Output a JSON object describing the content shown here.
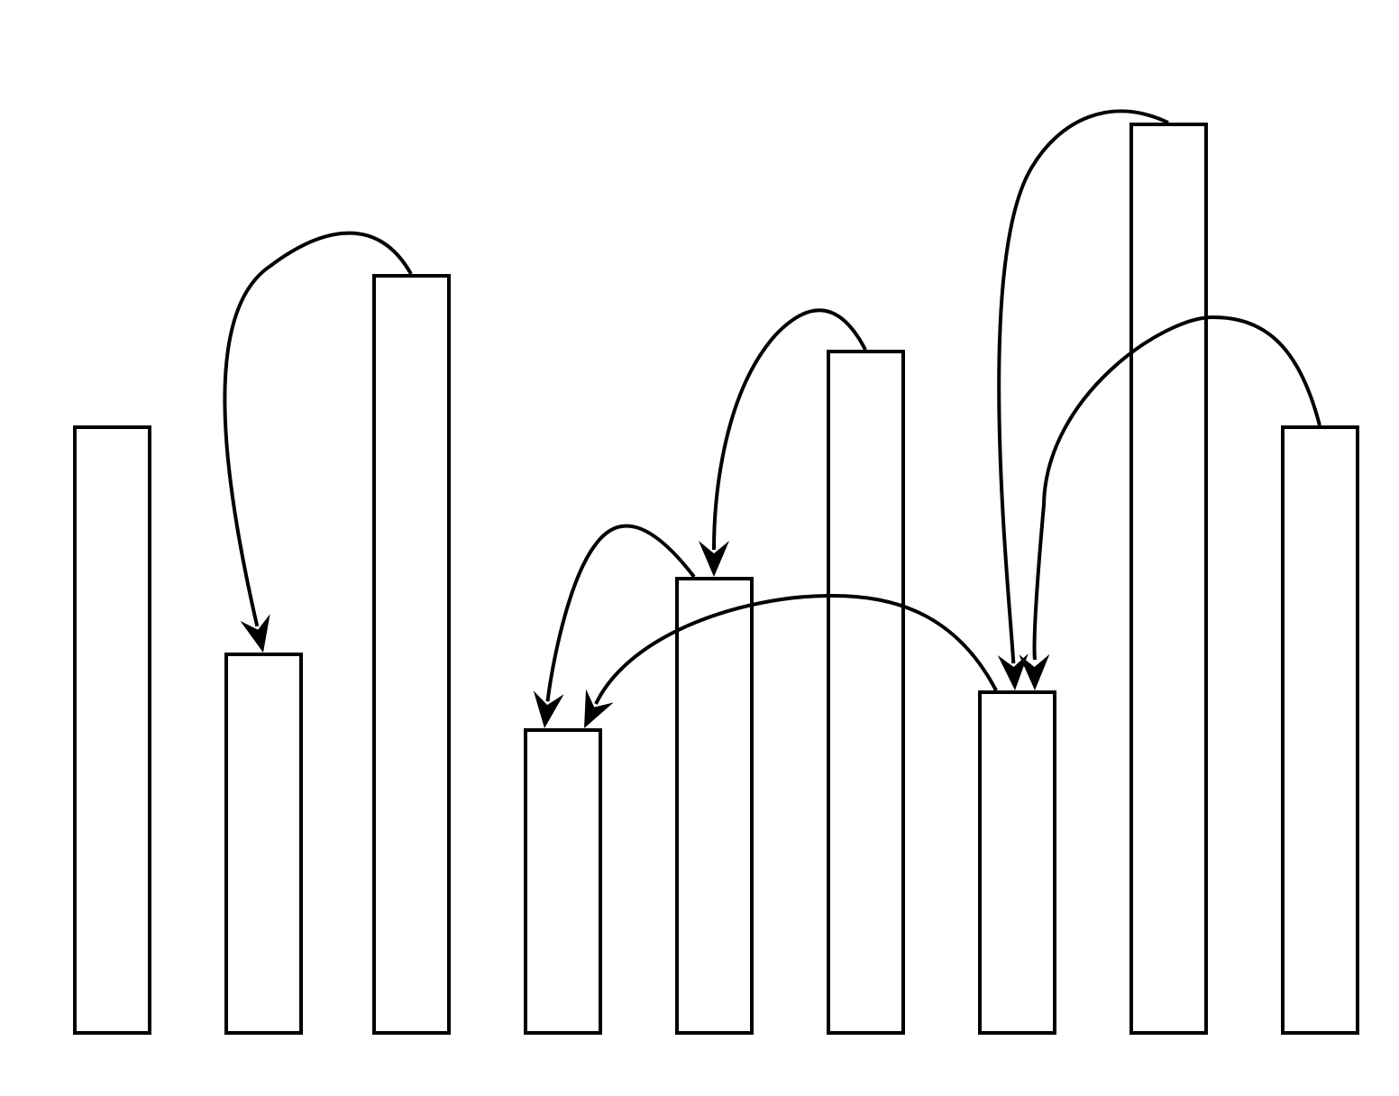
{
  "diagram": {
    "type": "bar-arrow-diagram",
    "colors": {
      "stroke": "#000000",
      "fill": "#ffffff",
      "background": "#ffffff"
    },
    "bars": [
      {
        "id": 1,
        "relative_height": 0.64
      },
      {
        "id": 2,
        "relative_height": 0.4
      },
      {
        "id": 3,
        "relative_height": 0.8
      },
      {
        "id": 4,
        "relative_height": 0.32
      },
      {
        "id": 5,
        "relative_height": 0.48
      },
      {
        "id": 6,
        "relative_height": 0.72
      },
      {
        "id": 7,
        "relative_height": 0.36
      },
      {
        "id": 8,
        "relative_height": 0.96
      },
      {
        "id": 9,
        "relative_height": 0.64
      }
    ],
    "arrows": [
      {
        "from": 3,
        "to": 2
      },
      {
        "from": 6,
        "to": 5
      },
      {
        "from": 5,
        "to": 4
      },
      {
        "from": 7,
        "to": 4
      },
      {
        "from": 8,
        "to": 7
      },
      {
        "from": 9,
        "to": 7
      }
    ]
  }
}
